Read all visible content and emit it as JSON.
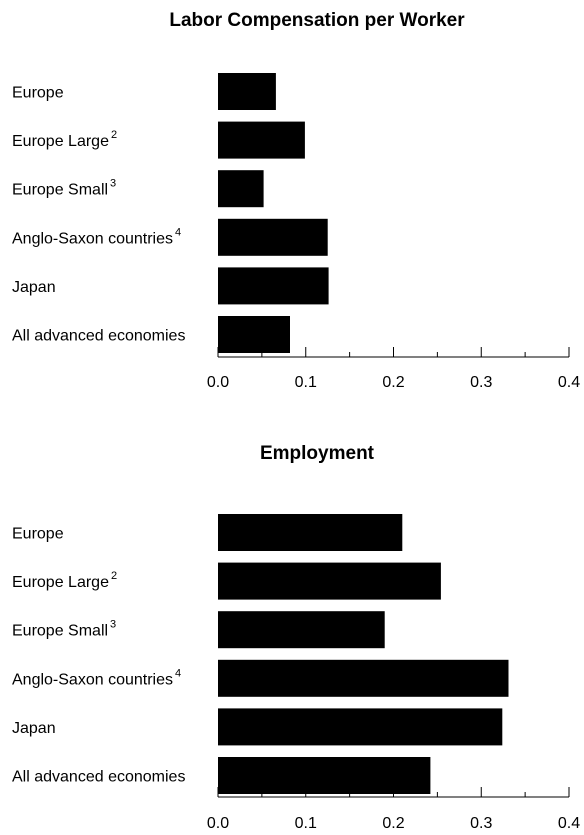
{
  "chart_data": [
    {
      "type": "bar",
      "orientation": "horizontal",
      "title": "Labor Compensation per Worker",
      "categories": [
        {
          "label": "Europe",
          "note": ""
        },
        {
          "label": "Europe Large",
          "note": "2"
        },
        {
          "label": "Europe Small",
          "note": "3"
        },
        {
          "label": "Anglo-Saxon countries",
          "note": "4"
        },
        {
          "label": "Japan",
          "note": ""
        },
        {
          "label": "All advanced economies",
          "note": ""
        }
      ],
      "values": [
        0.066,
        0.099,
        0.052,
        0.125,
        0.126,
        0.082
      ],
      "xlim": [
        0,
        0.4
      ],
      "xticks": [
        "0.0",
        "0.1",
        "0.2",
        "0.3",
        "0.4"
      ],
      "grid": false
    },
    {
      "type": "bar",
      "orientation": "horizontal",
      "title": "Employment",
      "categories": [
        {
          "label": "Europe",
          "note": ""
        },
        {
          "label": "Europe Large",
          "note": "2"
        },
        {
          "label": "Europe Small",
          "note": "3"
        },
        {
          "label": "Anglo-Saxon countries",
          "note": "4"
        },
        {
          "label": "Japan",
          "note": ""
        },
        {
          "label": "All advanced economies",
          "note": ""
        }
      ],
      "values": [
        0.21,
        0.254,
        0.19,
        0.331,
        0.324,
        0.242
      ],
      "xlim": [
        0,
        0.4
      ],
      "xticks": [
        "0.0",
        "0.1",
        "0.2",
        "0.3",
        "0.4"
      ],
      "grid": false
    }
  ]
}
